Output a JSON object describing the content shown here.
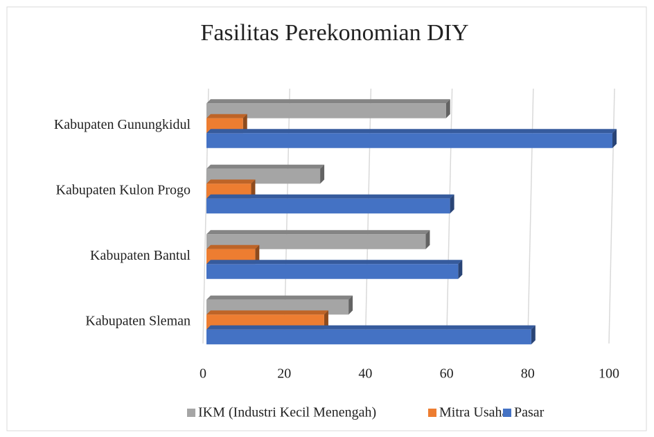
{
  "chart_data": {
    "type": "bar3d_horizontal",
    "title": "Fasilitas Perekonomian DIY",
    "categories": [
      "Kabupaten Sleman",
      "Kabupaten Bantul",
      "Kabupaten Kulon Progo",
      "Kabupaten Gunungkidul"
    ],
    "series": [
      {
        "name": "IKM (Industri Kecil Menengah)",
        "color": "#a5a5a5",
        "values": [
          35,
          54,
          28,
          59
        ]
      },
      {
        "name": "Mitra Usaha",
        "color": "#ed7d31",
        "values": [
          29,
          12,
          11,
          9
        ]
      },
      {
        "name": "Pasar",
        "color": "#4472c4",
        "values": [
          80,
          62,
          60,
          100
        ]
      }
    ],
    "xlim": [
      0,
      100
    ],
    "xticks": [
      0,
      20,
      40,
      60,
      80,
      100
    ],
    "grid": true,
    "legend": "bottom"
  }
}
